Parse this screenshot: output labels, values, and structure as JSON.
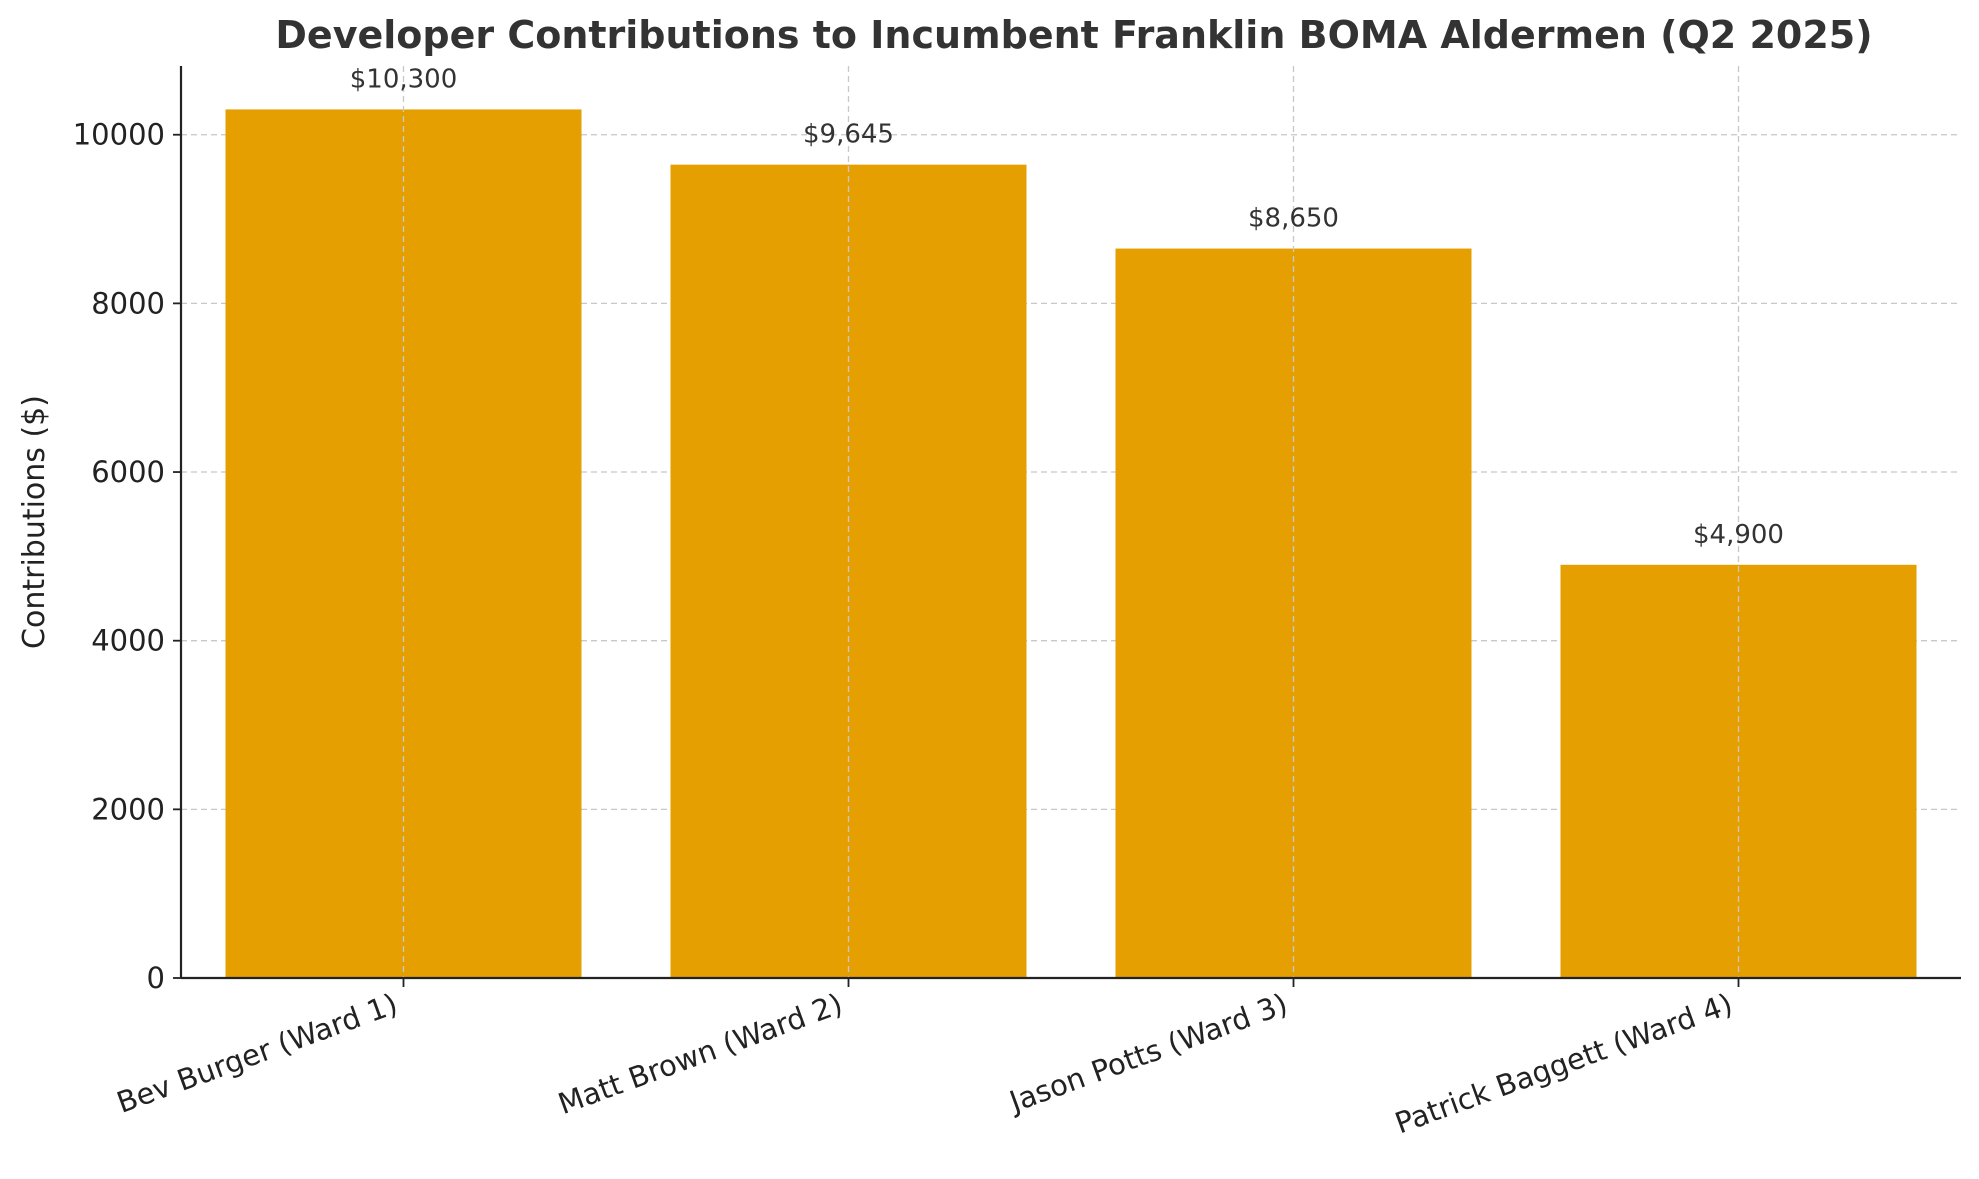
{
  "chart_data": {
    "type": "bar",
    "title": "Developer Contributions to Incumbent Franklin BOMA Aldermen (Q2 2025)",
    "xlabel": "",
    "ylabel": "Contributions ($)",
    "categories": [
      "Bev Burger (Ward 1)",
      "Matt Brown (Ward 2)",
      "Jason Potts (Ward 3)",
      "Patrick Baggett (Ward 4)"
    ],
    "values": [
      10300,
      9645,
      8650,
      4900
    ],
    "data_labels": [
      "$10,300",
      "$9,645",
      "$8,650",
      "$4,900"
    ],
    "ylim": [
      0,
      10815
    ],
    "yticks": [
      0,
      2000,
      4000,
      6000,
      8000,
      10000
    ],
    "grid": true,
    "bar_color": "#E69F00"
  }
}
